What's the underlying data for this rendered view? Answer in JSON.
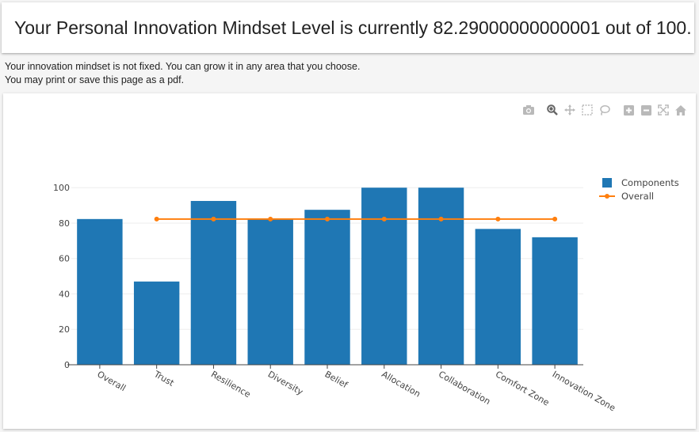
{
  "header": {
    "title": "Your Personal Innovation Mindset Level is currently 82.29000000000001 out of 100."
  },
  "intro": {
    "line1": "Your innovation mindset is not fixed.  You can grow it in any area that you choose.",
    "line2": "You may print or save this page as a pdf."
  },
  "modebar": {
    "buttons": [
      "camera-icon",
      "zoom-icon",
      "pan-icon",
      "box-select-icon",
      "lasso-select-icon",
      "zoom-in-icon",
      "zoom-out-icon",
      "autoscale-icon",
      "reset-axes-icon"
    ]
  },
  "colors": {
    "bar": "#1f77b4",
    "line": "#ff7f0e",
    "grid": "#eeeeee",
    "axis": "#444444"
  },
  "chart_data": {
    "type": "bar",
    "categories": [
      "Overall",
      "Trust",
      "Resilience",
      "Diversity",
      "Belief",
      "Allocation",
      "Collaboration",
      "Comfort Zone",
      "Innovation Zone"
    ],
    "series": [
      {
        "name": "Components",
        "type": "bar",
        "values": [
          82.29,
          47,
          92.5,
          82,
          87.5,
          100,
          100,
          76.7,
          72
        ]
      },
      {
        "name": "Overall",
        "type": "line",
        "values": [
          null,
          82.29,
          82.29,
          82.29,
          82.29,
          82.29,
          82.29,
          82.29,
          82.29
        ]
      }
    ],
    "y_ticks": [
      0,
      20,
      40,
      60,
      80,
      100
    ],
    "ylim": [
      0,
      105
    ],
    "grid": true,
    "legend_position": "top-right"
  }
}
